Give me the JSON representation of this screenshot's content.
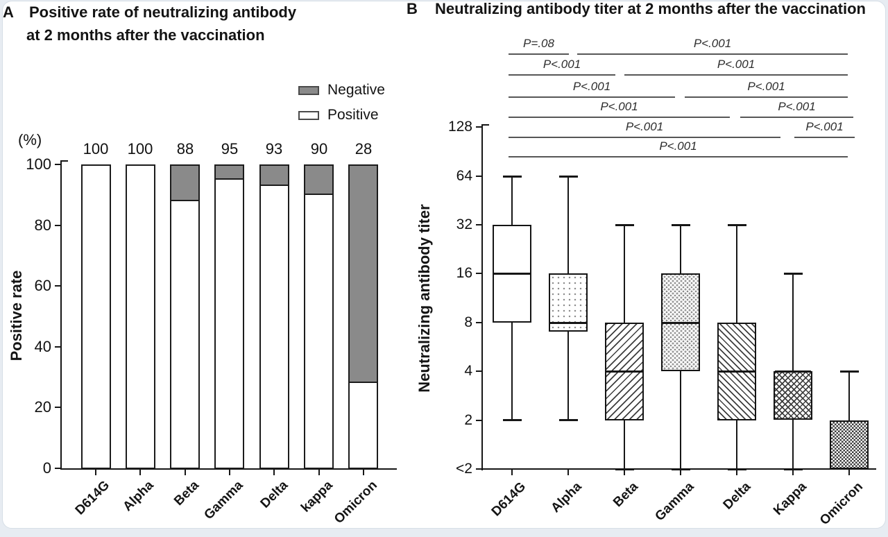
{
  "page": {
    "background": "#e7ecf2",
    "card_background": "#ffffff"
  },
  "panel_a": {
    "label": "A",
    "title_line1": "Positive rate of neutralizing antibody",
    "title_line2": "at 2 months after the vaccination",
    "y_unit": "(%)",
    "y_title": "Positive rate",
    "legend": [
      {
        "label": "Negative",
        "color": "#8a8a8a"
      },
      {
        "label": "Positive",
        "color": "#ffffff"
      }
    ]
  },
  "panel_b": {
    "label": "B",
    "title": "Neutralizing antibody titer at 2 months after the vaccination",
    "y_title": "Neutralizing antibody titer"
  },
  "chart_data": [
    {
      "type": "bar",
      "panel": "A",
      "title": "Positive rate of neutralizing antibody at 2 months after the vaccination",
      "stacked": true,
      "categories": [
        "D614G",
        "Alpha",
        "Beta",
        "Gamma",
        "Delta",
        "kappa",
        "Omicron"
      ],
      "series": [
        {
          "name": "Positive",
          "values": [
            100,
            100,
            88,
            95,
            93,
            90,
            28
          ],
          "color": "#ffffff"
        },
        {
          "name": "Negative",
          "values": [
            0,
            0,
            12,
            5,
            7,
            10,
            72
          ],
          "color": "#8a8a8a"
        }
      ],
      "bar_labels": [
        "100",
        "100",
        "88",
        "95",
        "93",
        "90",
        "28"
      ],
      "ylabel": "Positive rate",
      "y_unit": "(%)",
      "yticks": [
        0,
        20,
        40,
        60,
        80,
        100
      ],
      "ylim": [
        0,
        100
      ],
      "grid": false,
      "legend_position": "top-right"
    },
    {
      "type": "box",
      "panel": "B",
      "title": "Neutralizing antibody titer at 2 months after the vaccination",
      "categories": [
        "D614G",
        "Alpha",
        "Beta",
        "Gamma",
        "Delta",
        "Kappa",
        "Omicron"
      ],
      "ylabel": "Neutralizing antibody titer",
      "scale": "log2",
      "yticks": [
        "<2",
        "2",
        "4",
        "8",
        "16",
        "32",
        "64",
        "128"
      ],
      "boxes": [
        {
          "category": "D614G",
          "whisker_low": 2,
          "q1": 8,
          "median": 16,
          "q3": 32,
          "whisker_high": 64,
          "fill": "plain"
        },
        {
          "category": "Alpha",
          "whisker_low": 2,
          "q1": 7,
          "median": 8,
          "q3": 16,
          "whisker_high": 64,
          "fill": "dots-sparse"
        },
        {
          "category": "Beta",
          "whisker_low": "<2",
          "q1": 2,
          "median": 4,
          "q3": 8,
          "whisker_high": 32,
          "fill": "hatch-forward"
        },
        {
          "category": "Gamma",
          "whisker_low": "<2",
          "q1": 4,
          "median": 8,
          "q3": 16,
          "whisker_high": 32,
          "fill": "dots-dense"
        },
        {
          "category": "Delta",
          "whisker_low": "<2",
          "q1": 2,
          "median": 4,
          "q3": 8,
          "whisker_high": 32,
          "fill": "hatch-back"
        },
        {
          "category": "Kappa",
          "whisker_low": "<2",
          "q1": 2,
          "median": 4,
          "q3": 4,
          "whisker_high": 16,
          "fill": "crosshatch"
        },
        {
          "category": "Omicron",
          "whisker_low": "<2",
          "q1": "<2",
          "median": "<2",
          "q3": 2,
          "whisker_high": 4,
          "fill": "checker"
        }
      ],
      "comparisons": [
        {
          "between": [
            "D614G",
            "Alpha"
          ],
          "p": "P=.08"
        },
        {
          "between": [
            "Alpha",
            "Omicron"
          ],
          "p": "P<.001"
        },
        {
          "between": [
            "D614G",
            "Beta"
          ],
          "p": "P<.001"
        },
        {
          "between": [
            "Beta",
            "Omicron"
          ],
          "p": "P<.001"
        },
        {
          "between": [
            "D614G",
            "Gamma"
          ],
          "p": "P<.001"
        },
        {
          "between": [
            "Gamma",
            "Omicron"
          ],
          "p": "P<.001"
        },
        {
          "between": [
            "D614G",
            "Delta"
          ],
          "p": "P<.001"
        },
        {
          "between": [
            "Delta",
            "Omicron"
          ],
          "p": "P<.001"
        },
        {
          "between": [
            "D614G",
            "Kappa"
          ],
          "p": "P<.001"
        },
        {
          "between": [
            "Kappa",
            "Omicron"
          ],
          "p": "P<.001"
        },
        {
          "between": [
            "D614G",
            "Omicron"
          ],
          "p": "P<.001"
        }
      ]
    }
  ]
}
